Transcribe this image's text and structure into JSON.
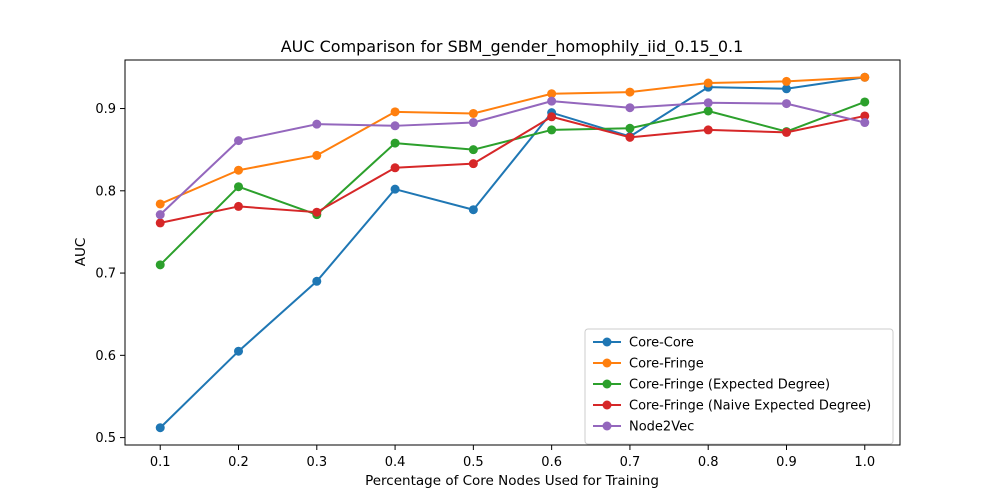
{
  "chart_data": {
    "type": "line",
    "title": "AUC Comparison for SBM_gender_homophily_iid_0.15_0.1",
    "xlabel": "Percentage of Core Nodes Used for Training",
    "ylabel": "AUC",
    "x": [
      0.1,
      0.2,
      0.3,
      0.4,
      0.5,
      0.6,
      0.7,
      0.8,
      0.9,
      1.0
    ],
    "xticks": [
      "0.1",
      "0.2",
      "0.3",
      "0.4",
      "0.5",
      "0.6",
      "0.7",
      "0.8",
      "0.9",
      "1.0"
    ],
    "yticks": [
      "0.5",
      "0.6",
      "0.7",
      "0.8",
      "0.9"
    ],
    "xlim": [
      0.055,
      1.045
    ],
    "ylim": [
      0.491,
      0.959
    ],
    "grid": false,
    "legend_position": "lower-right",
    "series": [
      {
        "name": "Core-Core",
        "color": "#1f77b4",
        "values": [
          0.512,
          0.605,
          0.69,
          0.802,
          0.777,
          0.895,
          0.866,
          0.926,
          0.924,
          0.938
        ]
      },
      {
        "name": "Core-Fringe",
        "color": "#ff7f0e",
        "values": [
          0.784,
          0.825,
          0.843,
          0.896,
          0.894,
          0.918,
          0.92,
          0.931,
          0.933,
          0.938
        ]
      },
      {
        "name": "Core-Fringe (Expected Degree)",
        "color": "#2ca02c",
        "values": [
          0.71,
          0.805,
          0.771,
          0.858,
          0.85,
          0.874,
          0.876,
          0.897,
          0.872,
          0.908
        ]
      },
      {
        "name": "Core-Fringe (Naive Expected Degree)",
        "color": "#d62728",
        "values": [
          0.761,
          0.781,
          0.774,
          0.828,
          0.833,
          0.89,
          0.865,
          0.874,
          0.871,
          0.891
        ]
      },
      {
        "name": "Node2Vec",
        "color": "#9467bd",
        "values": [
          0.771,
          0.861,
          0.881,
          0.879,
          0.883,
          0.909,
          0.901,
          0.907,
          0.906,
          0.883
        ]
      }
    ]
  }
}
